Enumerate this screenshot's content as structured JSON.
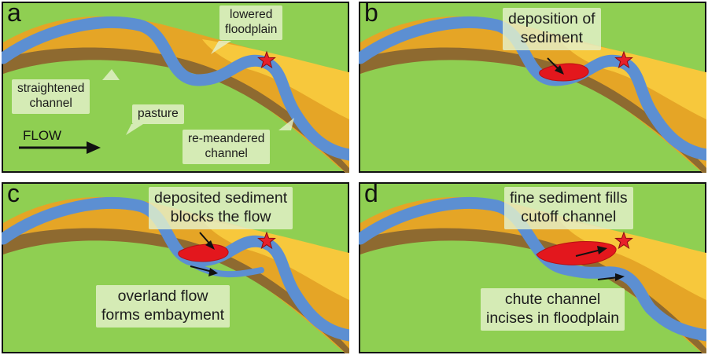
{
  "colors": {
    "background": "#8fcf52",
    "floodplain_orange": "#e5a526",
    "floodplain_yellow": "#f7c83c",
    "terrace_brown": "#8e6a30",
    "channel_blue": "#5c8fd2",
    "sediment_red": "#e3171d",
    "star": "#e8202a",
    "label_box": "#e4f0ca",
    "border": "#111111"
  },
  "panels": [
    {
      "letter": "a",
      "labels": {
        "lowered_floodplain": "lowered\nfloodplain",
        "straightened_channel": "straightened\nchannel",
        "pasture": "pasture",
        "re_meandered_channel": "re-meandered\nchannel",
        "flow": "FLOW"
      }
    },
    {
      "letter": "b",
      "labels": {
        "deposition": "deposition of\nsediment"
      }
    },
    {
      "letter": "c",
      "labels": {
        "blocks": "deposited sediment\nblocks the flow",
        "overland": "overland flow\nforms embayment"
      }
    },
    {
      "letter": "d",
      "labels": {
        "fills": "fine sediment fills\ncutoff channel",
        "chute": "chute channel\nincises in floodplain"
      }
    }
  ]
}
